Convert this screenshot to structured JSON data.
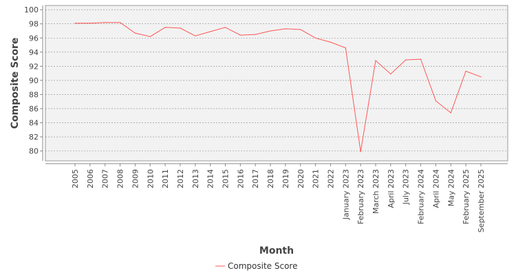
{
  "chart_data": {
    "type": "line",
    "title": "",
    "xlabel": "Month",
    "ylabel": "Composite Score",
    "ylim": [
      78.6,
      100.6
    ],
    "yticks": [
      80,
      82,
      84,
      86,
      88,
      90,
      92,
      94,
      96,
      98,
      100
    ],
    "grid": true,
    "legend_position": "bottom",
    "categories": [
      "2005",
      "2006",
      "2007",
      "2008",
      "2009",
      "2010",
      "2011",
      "2012",
      "2013",
      "2014",
      "2015",
      "2016",
      "2017",
      "2018",
      "2019",
      "2020",
      "2021",
      "2022",
      "January 2023",
      "February 2023",
      "March 2023",
      "April 2023",
      "July 2023",
      "February 2024",
      "April 2024",
      "May 2024",
      "February 2025",
      "September 2025"
    ],
    "series": [
      {
        "name": "Composite Score",
        "color": "#ff5555",
        "values": [
          98.1,
          98.1,
          98.2,
          98.2,
          96.7,
          96.2,
          97.5,
          97.4,
          96.3,
          96.9,
          97.5,
          96.4,
          96.5,
          97.0,
          97.3,
          97.2,
          96.0,
          95.4,
          94.6,
          79.9,
          92.8,
          90.9,
          92.9,
          93.0,
          87.1,
          85.4,
          91.3,
          90.5
        ]
      }
    ]
  }
}
